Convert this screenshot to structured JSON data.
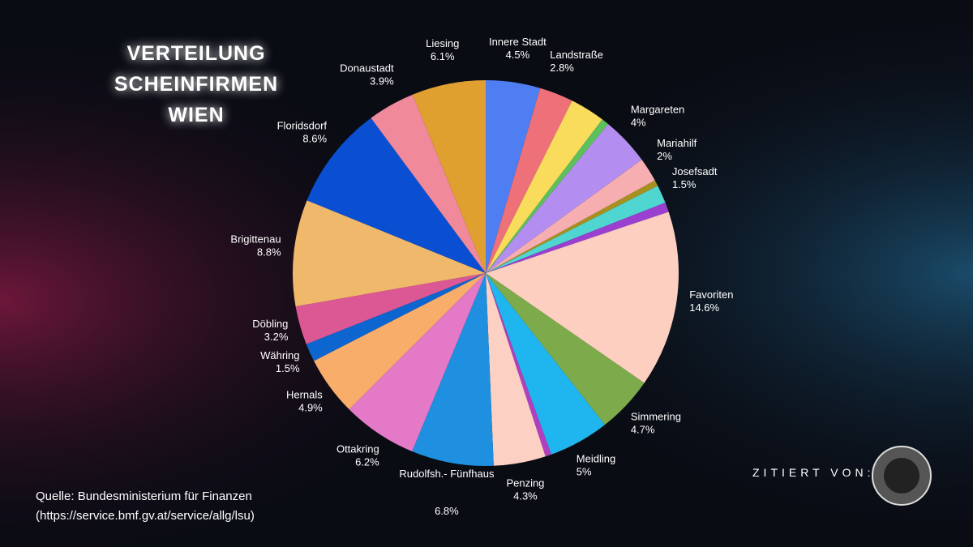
{
  "chart_data": {
    "type": "pie",
    "title": "VERTEILUNG SCHEINFIRMEN WIEN",
    "categories": [
      "Innere Stadt",
      "Landstraße",
      null,
      null,
      "Margareten",
      "Mariahilf",
      null,
      "Josefsadt",
      null,
      "Favoriten",
      "Simmering",
      "Meidling",
      null,
      "Penzing",
      "Rudolfsh.- Fünfhaus",
      "Ottakring",
      "Hernals",
      "Währing",
      "Döbling",
      "Brigittenau",
      "Floridsdorf",
      "Donaustadt",
      "Liesing"
    ],
    "values": [
      4.5,
      2.8,
      2.9,
      0.6,
      4,
      2,
      0.5,
      1.5,
      0.8,
      14.6,
      4.7,
      5,
      0.5,
      4.3,
      6.8,
      6.2,
      4.9,
      1.5,
      3.2,
      8.8,
      8.6,
      3.9,
      6.1
    ],
    "value_labels": [
      "4.5%",
      "2.8%",
      null,
      null,
      "4%",
      "2%",
      null,
      "1.5%",
      null,
      "14.6%",
      "4.7%",
      "5%",
      null,
      "4.3%",
      "6.8%",
      "6.2%",
      "4.9%",
      "1.5%",
      "3.2%",
      "8.8%",
      "8.6%",
      "3.9%",
      "6.1%"
    ],
    "colors": [
      "#4f7df2",
      "#ee7079",
      "#f9dc5c",
      "#5cc05c",
      "#b38ef0",
      "#f7aeb0",
      "#a89020",
      "#4fd6d0",
      "#9a3fd0",
      "#fccfc0",
      "#7daa4a",
      "#1fb6ef",
      "#b040c0",
      "#fdd0c4",
      "#1f8fe0",
      "#e479c8",
      "#f8ae6a",
      "#0d66d0",
      "#dc5894",
      "#f0b86a",
      "#0a4fd2",
      "#f08a9a",
      "#e0a030"
    ]
  },
  "source": [
    "Quelle: Bundesministerium für Finanzen",
    "(https://service.bmf.gv.at/service/allg/lsu)"
  ],
  "credit": "ZITIERT VON:"
}
